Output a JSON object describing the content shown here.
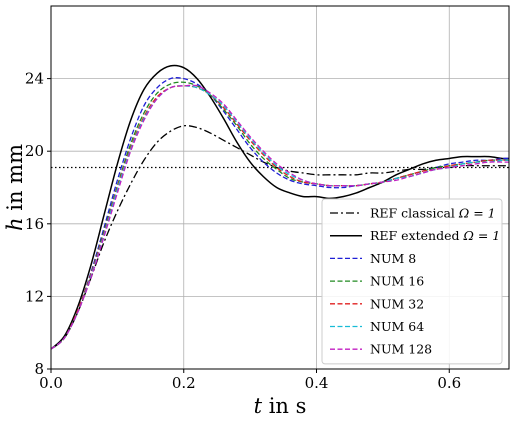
{
  "chart_data": {
    "type": "line",
    "xlabel_var": "t",
    "xlabel_unit": " in s",
    "ylabel_var": "h",
    "ylabel_unit": " in mm",
    "xlim": [
      0,
      0.69
    ],
    "ylim": [
      8,
      28
    ],
    "xticks": [
      0.0,
      0.2,
      0.4,
      0.6
    ],
    "xtick_labels": [
      "0.0",
      "0.2",
      "0.4",
      "0.6"
    ],
    "yticks": [
      8,
      12,
      16,
      20,
      24
    ],
    "ytick_labels": [
      "8",
      "12",
      "16",
      "20",
      "24"
    ],
    "grid": true,
    "legend_position": "lower-right",
    "reference_line": {
      "y": 19.1,
      "style": "dotted",
      "color": "#000000"
    },
    "x": [
      0.0,
      0.02,
      0.04,
      0.06,
      0.08,
      0.1,
      0.12,
      0.14,
      0.16,
      0.18,
      0.2,
      0.22,
      0.24,
      0.26,
      0.28,
      0.3,
      0.32,
      0.34,
      0.36,
      0.38,
      0.4,
      0.42,
      0.44,
      0.46,
      0.48,
      0.5,
      0.52,
      0.54,
      0.56,
      0.58,
      0.6,
      0.62,
      0.64,
      0.66,
      0.68,
      0.69
    ],
    "series": [
      {
        "name": "REF classical Ω = 1",
        "legend_prefix": "REF classical ",
        "legend_math": "Ω = 1",
        "color": "#000000",
        "dash": "8,3,2,3",
        "width": 1.3,
        "values": [
          9.1,
          9.7,
          11.1,
          13.0,
          15.0,
          16.7,
          18.2,
          19.5,
          20.5,
          21.1,
          21.4,
          21.3,
          21.0,
          20.6,
          20.2,
          19.8,
          19.4,
          19.1,
          18.9,
          18.8,
          18.7,
          18.7,
          18.7,
          18.7,
          18.8,
          18.8,
          18.9,
          19.0,
          19.0,
          19.1,
          19.1,
          19.2,
          19.2,
          19.2,
          19.2,
          19.2
        ]
      },
      {
        "name": "REF extended Ω = 1",
        "legend_prefix": "REF extended ",
        "legend_math": "Ω = 1",
        "color": "#000000",
        "dash": "",
        "width": 1.5,
        "values": [
          9.1,
          9.8,
          11.4,
          13.7,
          16.5,
          19.3,
          21.7,
          23.4,
          24.3,
          24.7,
          24.6,
          24.0,
          23.0,
          21.8,
          20.5,
          19.4,
          18.6,
          18.0,
          17.7,
          17.5,
          17.5,
          17.4,
          17.5,
          17.7,
          18.0,
          18.3,
          18.7,
          19.0,
          19.3,
          19.5,
          19.6,
          19.7,
          19.7,
          19.7,
          19.6,
          19.6
        ]
      },
      {
        "name": "NUM 8",
        "legend_prefix": "NUM 8",
        "legend_math": "",
        "color": "#1f1fd6",
        "dash": "5,2.5",
        "width": 1.3,
        "values": [
          9.1,
          9.7,
          11.2,
          13.3,
          15.8,
          18.4,
          20.7,
          22.5,
          23.5,
          24.0,
          24.0,
          23.7,
          23.1,
          22.2,
          21.2,
          20.2,
          19.4,
          18.8,
          18.4,
          18.2,
          18.1,
          18.0,
          18.0,
          18.1,
          18.2,
          18.3,
          18.5,
          18.7,
          18.9,
          19.1,
          19.3,
          19.4,
          19.5,
          19.5,
          19.6,
          19.6
        ]
      },
      {
        "name": "NUM 16",
        "legend_prefix": "NUM 16",
        "legend_math": "",
        "color": "#208a20",
        "dash": "5,2.5",
        "width": 1.3,
        "values": [
          9.1,
          9.7,
          11.2,
          13.2,
          15.6,
          18.1,
          20.4,
          22.1,
          23.2,
          23.7,
          23.8,
          23.6,
          23.1,
          22.3,
          21.4,
          20.4,
          19.6,
          19.0,
          18.5,
          18.3,
          18.2,
          18.1,
          18.1,
          18.1,
          18.2,
          18.3,
          18.5,
          18.7,
          18.9,
          19.1,
          19.2,
          19.3,
          19.4,
          19.5,
          19.5,
          19.5
        ]
      },
      {
        "name": "NUM 32",
        "legend_prefix": "NUM 32",
        "legend_math": "",
        "color": "#e02020",
        "dash": "5,2.5",
        "width": 1.3,
        "values": [
          9.1,
          9.7,
          11.2,
          13.2,
          15.5,
          18.0,
          20.2,
          21.9,
          23.0,
          23.5,
          23.6,
          23.5,
          23.1,
          22.4,
          21.5,
          20.6,
          19.8,
          19.1,
          18.6,
          18.3,
          18.2,
          18.1,
          18.1,
          18.1,
          18.2,
          18.3,
          18.5,
          18.7,
          18.9,
          19.0,
          19.2,
          19.3,
          19.4,
          19.5,
          19.5,
          19.5
        ]
      },
      {
        "name": "NUM 64",
        "legend_prefix": "NUM 64",
        "legend_math": "",
        "color": "#17bcd6",
        "dash": "5,2.5",
        "width": 1.3,
        "values": [
          9.1,
          9.7,
          11.1,
          13.1,
          15.4,
          17.9,
          20.1,
          21.8,
          22.9,
          23.5,
          23.6,
          23.5,
          23.1,
          22.5,
          21.6,
          20.7,
          19.9,
          19.2,
          18.7,
          18.4,
          18.2,
          18.1,
          18.1,
          18.1,
          18.2,
          18.3,
          18.5,
          18.6,
          18.8,
          19.0,
          19.1,
          19.3,
          19.4,
          19.4,
          19.5,
          19.5
        ]
      },
      {
        "name": "NUM 128",
        "legend_prefix": "NUM 128",
        "legend_math": "",
        "color": "#c21fc2",
        "dash": "5,2.5",
        "width": 1.3,
        "values": [
          9.1,
          9.7,
          11.1,
          13.0,
          15.3,
          17.7,
          20.0,
          21.7,
          22.9,
          23.5,
          23.6,
          23.6,
          23.2,
          22.6,
          21.7,
          20.8,
          20.0,
          19.3,
          18.8,
          18.4,
          18.2,
          18.1,
          18.1,
          18.1,
          18.2,
          18.3,
          18.4,
          18.6,
          18.8,
          19.0,
          19.1,
          19.2,
          19.3,
          19.4,
          19.4,
          19.4
        ]
      }
    ]
  }
}
